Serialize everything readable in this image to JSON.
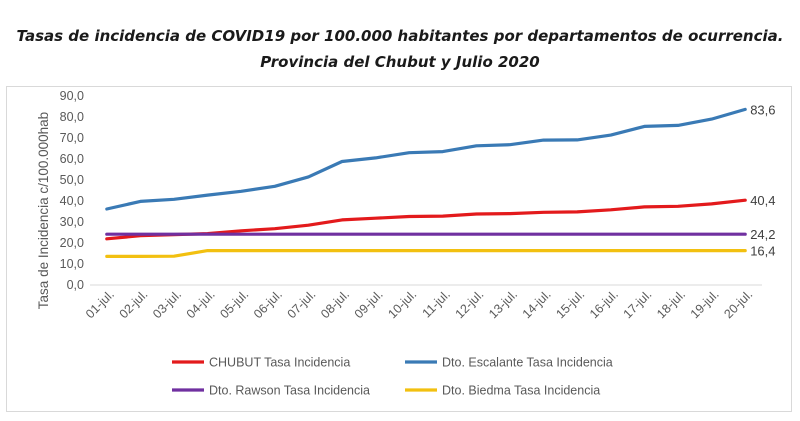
{
  "chart_data": {
    "type": "line",
    "title": "Tasas de incidencia de COVID19 por 100.000 habitantes por departamentos de ocurrencia.",
    "subtitle": "Provincia del  Chubut y Julio 2020",
    "ylabel": "Tasa de Incidencia c/100.000hab",
    "xlabel": "",
    "ylim": [
      0,
      90
    ],
    "yticks": [
      "0,0",
      "10,0",
      "20,0",
      "30,0",
      "40,0",
      "50,0",
      "60,0",
      "70,0",
      "80,0",
      "90,0"
    ],
    "categories": [
      "01-jul.",
      "02-jul.",
      "03-jul.",
      "04-jul.",
      "05-jul.",
      "06-jul.",
      "07-jul.",
      "08-jul.",
      "09-jul.",
      "10-jul.",
      "11-jul.",
      "12-jul.",
      "13-jul.",
      "14-jul.",
      "15-jul.",
      "16-jul.",
      "17-jul.",
      "18-jul.",
      "19-jul.",
      "20-jul."
    ],
    "grid": false,
    "legend_position": "bottom",
    "series": [
      {
        "name": "CHUBUT Tasa Incidencia",
        "color": "#e31a1c",
        "end_label": "40,4",
        "values": [
          22.0,
          23.5,
          24.0,
          24.5,
          25.8,
          26.8,
          28.5,
          31.0,
          31.8,
          32.6,
          32.8,
          33.8,
          34.0,
          34.6,
          34.8,
          35.8,
          37.2,
          37.5,
          38.6,
          40.4
        ]
      },
      {
        "name": "Dto. Escalante Tasa Incidencia",
        "color": "#3a7ab5",
        "end_label": "83,6",
        "values": [
          36.2,
          39.8,
          40.8,
          42.8,
          44.6,
          47.0,
          51.5,
          58.8,
          60.5,
          63.0,
          63.5,
          66.3,
          66.8,
          69.0,
          69.1,
          71.4,
          75.5,
          76.0,
          79.0,
          83.6
        ]
      },
      {
        "name": "Dto. Rawson Tasa Incidencia",
        "color": "#7030a0",
        "end_label": "24,2",
        "values": [
          24.2,
          24.2,
          24.2,
          24.2,
          24.2,
          24.2,
          24.2,
          24.2,
          24.2,
          24.2,
          24.2,
          24.2,
          24.2,
          24.2,
          24.2,
          24.2,
          24.2,
          24.2,
          24.2,
          24.2
        ]
      },
      {
        "name": "Dto. Biedma Tasa Incidencia",
        "color": "#f2c010",
        "end_label": "16,4",
        "values": [
          13.6,
          13.6,
          13.7,
          16.4,
          16.4,
          16.4,
          16.4,
          16.4,
          16.4,
          16.4,
          16.4,
          16.4,
          16.4,
          16.4,
          16.4,
          16.4,
          16.4,
          16.4,
          16.4,
          16.4
        ]
      }
    ]
  }
}
